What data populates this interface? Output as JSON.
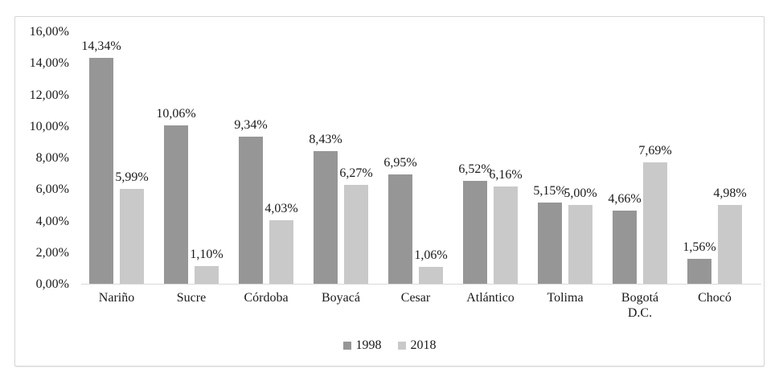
{
  "chart_data": {
    "type": "bar",
    "title": "",
    "xlabel": "",
    "ylabel": "",
    "categories": [
      "Nariño",
      "Sucre",
      "Córdoba",
      "Boyacá",
      "Cesar",
      "Atlántico",
      "Tolima",
      "Bogotá D.C.",
      "Chocó"
    ],
    "series": [
      {
        "name": "1998",
        "color": "#969696",
        "values": [
          14.34,
          10.06,
          9.34,
          8.43,
          6.95,
          6.52,
          5.15,
          4.66,
          1.56
        ],
        "labels": [
          "14,34%",
          "10,06%",
          "9,34%",
          "8,43%",
          "6,95%",
          "6,52%",
          "5,15%",
          "4,66%",
          "1,56%"
        ]
      },
      {
        "name": "2018",
        "color": "#c9c9c9",
        "values": [
          5.99,
          1.1,
          4.03,
          6.27,
          1.06,
          6.16,
          5.0,
          7.69,
          4.98
        ],
        "labels": [
          "5,99%",
          "1,10%",
          "4,03%",
          "6,27%",
          "1,06%",
          "6,16%",
          "5,00%",
          "7,69%",
          "4,98%"
        ]
      }
    ],
    "y_axis": {
      "min": 0,
      "max": 16,
      "step": 2,
      "tick_labels": [
        "0,00%",
        "2,00%",
        "4,00%",
        "6,00%",
        "8,00%",
        "10,00%",
        "12,00%",
        "14,00%",
        "16,00%"
      ]
    },
    "ylim": [
      0,
      16
    ],
    "grid": false,
    "legend": {
      "position": "bottom",
      "entries": [
        "1998",
        "2018"
      ]
    }
  },
  "colors": {
    "bar_1998": "#969696",
    "bar_2018": "#c9c9c9",
    "axis_line": "#d9d9d9",
    "frame_border": "#d6d6d6",
    "text": "#1a1a1a",
    "background": "#ffffff"
  }
}
